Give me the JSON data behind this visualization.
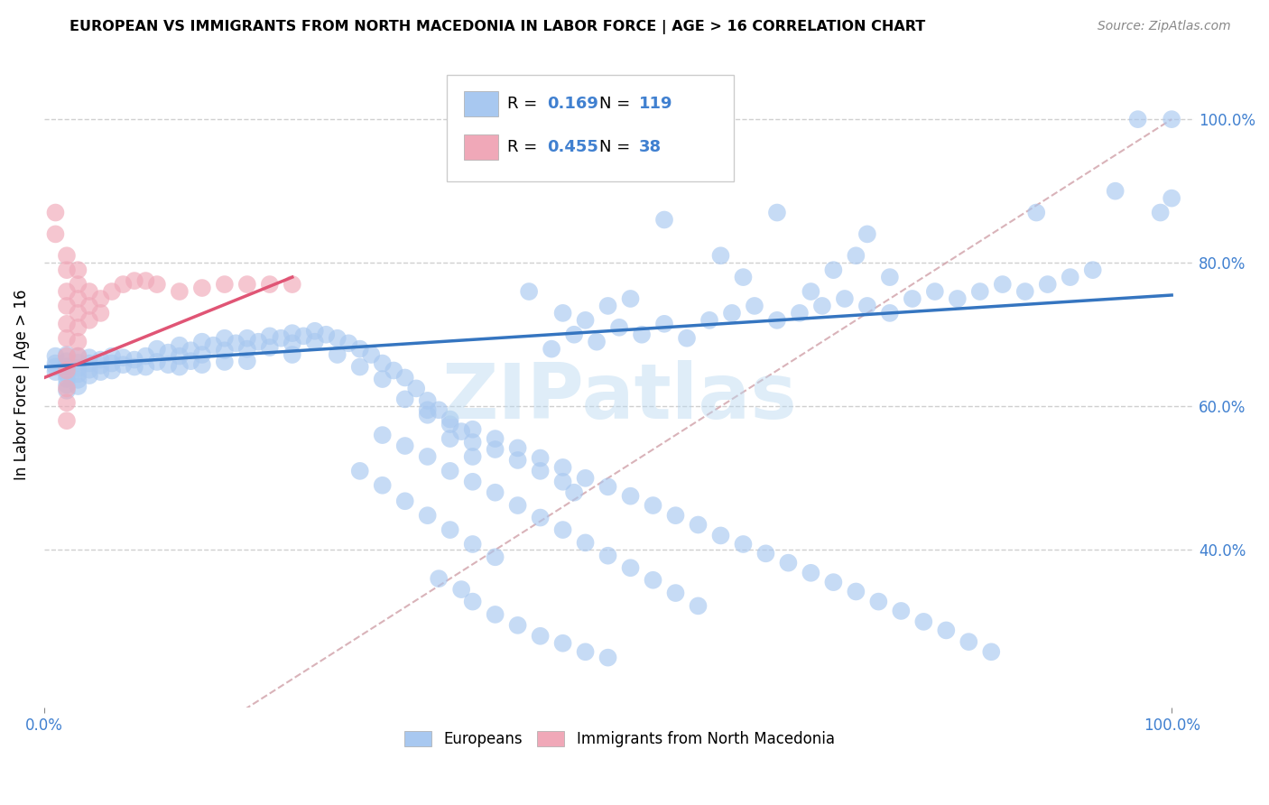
{
  "title": "EUROPEAN VS IMMIGRANTS FROM NORTH MACEDONIA IN LABOR FORCE | AGE > 16 CORRELATION CHART",
  "source": "Source: ZipAtlas.com",
  "ylabel": "In Labor Force | Age > 16",
  "y_ticks_labels": [
    "40.0%",
    "60.0%",
    "80.0%",
    "100.0%"
  ],
  "y_tick_vals": [
    0.4,
    0.6,
    0.8,
    1.0
  ],
  "x_tick_labels": [
    "0.0%",
    "100.0%"
  ],
  "x_tick_vals": [
    0.0,
    1.0
  ],
  "blue_color": "#a8c8f0",
  "pink_color": "#f0a8b8",
  "blue_line_color": "#3575c0",
  "pink_line_color": "#e05575",
  "diag_line_color": "#d0a0a8",
  "watermark": "ZIPatlas",
  "legend_blue_r": "0.169",
  "legend_blue_n": "119",
  "legend_pink_r": "0.455",
  "legend_pink_n": "38",
  "tick_color": "#4080d0",
  "blue_scatter": [
    [
      0.01,
      0.67
    ],
    [
      0.01,
      0.66
    ],
    [
      0.01,
      0.655
    ],
    [
      0.01,
      0.648
    ],
    [
      0.02,
      0.672
    ],
    [
      0.02,
      0.663
    ],
    [
      0.02,
      0.655
    ],
    [
      0.02,
      0.645
    ],
    [
      0.02,
      0.638
    ],
    [
      0.02,
      0.63
    ],
    [
      0.02,
      0.622
    ],
    [
      0.03,
      0.67
    ],
    [
      0.03,
      0.661
    ],
    [
      0.03,
      0.653
    ],
    [
      0.03,
      0.645
    ],
    [
      0.03,
      0.637
    ],
    [
      0.03,
      0.628
    ],
    [
      0.04,
      0.668
    ],
    [
      0.04,
      0.66
    ],
    [
      0.04,
      0.651
    ],
    [
      0.04,
      0.643
    ],
    [
      0.05,
      0.665
    ],
    [
      0.05,
      0.657
    ],
    [
      0.05,
      0.648
    ],
    [
      0.06,
      0.67
    ],
    [
      0.06,
      0.66
    ],
    [
      0.06,
      0.65
    ],
    [
      0.07,
      0.668
    ],
    [
      0.07,
      0.658
    ],
    [
      0.08,
      0.665
    ],
    [
      0.08,
      0.655
    ],
    [
      0.09,
      0.67
    ],
    [
      0.09,
      0.655
    ],
    [
      0.1,
      0.68
    ],
    [
      0.1,
      0.662
    ],
    [
      0.11,
      0.675
    ],
    [
      0.11,
      0.658
    ],
    [
      0.12,
      0.685
    ],
    [
      0.12,
      0.67
    ],
    [
      0.12,
      0.655
    ],
    [
      0.13,
      0.678
    ],
    [
      0.13,
      0.663
    ],
    [
      0.14,
      0.69
    ],
    [
      0.14,
      0.672
    ],
    [
      0.14,
      0.658
    ],
    [
      0.15,
      0.685
    ],
    [
      0.16,
      0.695
    ],
    [
      0.16,
      0.678
    ],
    [
      0.16,
      0.662
    ],
    [
      0.17,
      0.688
    ],
    [
      0.18,
      0.695
    ],
    [
      0.18,
      0.68
    ],
    [
      0.18,
      0.663
    ],
    [
      0.19,
      0.69
    ],
    [
      0.2,
      0.698
    ],
    [
      0.2,
      0.682
    ],
    [
      0.21,
      0.695
    ],
    [
      0.22,
      0.702
    ],
    [
      0.22,
      0.688
    ],
    [
      0.22,
      0.672
    ],
    [
      0.23,
      0.698
    ],
    [
      0.24,
      0.705
    ],
    [
      0.24,
      0.69
    ],
    [
      0.25,
      0.7
    ],
    [
      0.26,
      0.695
    ],
    [
      0.26,
      0.672
    ],
    [
      0.27,
      0.688
    ],
    [
      0.28,
      0.68
    ],
    [
      0.28,
      0.655
    ],
    [
      0.29,
      0.672
    ],
    [
      0.3,
      0.66
    ],
    [
      0.3,
      0.638
    ],
    [
      0.31,
      0.65
    ],
    [
      0.32,
      0.64
    ],
    [
      0.33,
      0.625
    ],
    [
      0.34,
      0.608
    ],
    [
      0.34,
      0.588
    ],
    [
      0.35,
      0.595
    ],
    [
      0.36,
      0.575
    ],
    [
      0.36,
      0.555
    ],
    [
      0.37,
      0.565
    ],
    [
      0.38,
      0.55
    ],
    [
      0.38,
      0.53
    ],
    [
      0.4,
      0.54
    ],
    [
      0.42,
      0.525
    ],
    [
      0.44,
      0.51
    ],
    [
      0.46,
      0.495
    ],
    [
      0.47,
      0.48
    ],
    [
      0.28,
      0.51
    ],
    [
      0.3,
      0.49
    ],
    [
      0.32,
      0.468
    ],
    [
      0.34,
      0.448
    ],
    [
      0.36,
      0.428
    ],
    [
      0.38,
      0.408
    ],
    [
      0.4,
      0.39
    ],
    [
      0.35,
      0.36
    ],
    [
      0.37,
      0.345
    ],
    [
      0.38,
      0.328
    ],
    [
      0.4,
      0.31
    ],
    [
      0.42,
      0.295
    ],
    [
      0.44,
      0.28
    ],
    [
      0.46,
      0.27
    ],
    [
      0.48,
      0.258
    ],
    [
      0.5,
      0.25
    ],
    [
      0.3,
      0.56
    ],
    [
      0.32,
      0.545
    ],
    [
      0.34,
      0.53
    ],
    [
      0.36,
      0.51
    ],
    [
      0.38,
      0.495
    ],
    [
      0.4,
      0.48
    ],
    [
      0.42,
      0.462
    ],
    [
      0.44,
      0.445
    ],
    [
      0.46,
      0.428
    ],
    [
      0.48,
      0.41
    ],
    [
      0.5,
      0.392
    ],
    [
      0.52,
      0.375
    ],
    [
      0.54,
      0.358
    ],
    [
      0.56,
      0.34
    ],
    [
      0.58,
      0.322
    ],
    [
      0.32,
      0.61
    ],
    [
      0.34,
      0.595
    ],
    [
      0.36,
      0.582
    ],
    [
      0.38,
      0.568
    ],
    [
      0.4,
      0.555
    ],
    [
      0.42,
      0.542
    ],
    [
      0.44,
      0.528
    ],
    [
      0.46,
      0.515
    ],
    [
      0.48,
      0.5
    ],
    [
      0.5,
      0.488
    ],
    [
      0.52,
      0.475
    ],
    [
      0.54,
      0.462
    ],
    [
      0.56,
      0.448
    ],
    [
      0.58,
      0.435
    ],
    [
      0.6,
      0.42
    ],
    [
      0.62,
      0.408
    ],
    [
      0.64,
      0.395
    ],
    [
      0.66,
      0.382
    ],
    [
      0.68,
      0.368
    ],
    [
      0.7,
      0.355
    ],
    [
      0.72,
      0.342
    ],
    [
      0.74,
      0.328
    ],
    [
      0.76,
      0.315
    ],
    [
      0.78,
      0.3
    ],
    [
      0.8,
      0.288
    ],
    [
      0.82,
      0.272
    ],
    [
      0.84,
      0.258
    ],
    [
      0.45,
      0.68
    ],
    [
      0.47,
      0.7
    ],
    [
      0.49,
      0.69
    ],
    [
      0.51,
      0.71
    ],
    [
      0.53,
      0.7
    ],
    [
      0.55,
      0.715
    ],
    [
      0.57,
      0.695
    ],
    [
      0.59,
      0.72
    ],
    [
      0.61,
      0.73
    ],
    [
      0.63,
      0.74
    ],
    [
      0.65,
      0.72
    ],
    [
      0.67,
      0.73
    ],
    [
      0.69,
      0.74
    ],
    [
      0.71,
      0.75
    ],
    [
      0.73,
      0.74
    ],
    [
      0.75,
      0.73
    ],
    [
      0.77,
      0.75
    ],
    [
      0.79,
      0.76
    ],
    [
      0.81,
      0.75
    ],
    [
      0.83,
      0.76
    ],
    [
      0.85,
      0.77
    ],
    [
      0.87,
      0.76
    ],
    [
      0.89,
      0.77
    ],
    [
      0.91,
      0.78
    ],
    [
      0.93,
      0.79
    ],
    [
      0.95,
      0.9
    ],
    [
      0.97,
      1.0
    ],
    [
      0.99,
      0.87
    ],
    [
      1.0,
      1.0
    ],
    [
      1.0,
      0.89
    ],
    [
      0.88,
      0.87
    ],
    [
      0.55,
      0.86
    ],
    [
      0.6,
      0.81
    ],
    [
      0.62,
      0.78
    ],
    [
      0.65,
      0.87
    ],
    [
      0.68,
      0.76
    ],
    [
      0.7,
      0.79
    ],
    [
      0.72,
      0.81
    ],
    [
      0.73,
      0.84
    ],
    [
      0.75,
      0.78
    ],
    [
      0.43,
      0.76
    ],
    [
      0.46,
      0.73
    ],
    [
      0.48,
      0.72
    ],
    [
      0.5,
      0.74
    ],
    [
      0.52,
      0.75
    ]
  ],
  "pink_scatter": [
    [
      0.01,
      0.87
    ],
    [
      0.01,
      0.84
    ],
    [
      0.02,
      0.81
    ],
    [
      0.02,
      0.79
    ],
    [
      0.02,
      0.76
    ],
    [
      0.02,
      0.74
    ],
    [
      0.02,
      0.715
    ],
    [
      0.02,
      0.695
    ],
    [
      0.02,
      0.67
    ],
    [
      0.02,
      0.65
    ],
    [
      0.02,
      0.625
    ],
    [
      0.02,
      0.605
    ],
    [
      0.02,
      0.58
    ],
    [
      0.03,
      0.79
    ],
    [
      0.03,
      0.77
    ],
    [
      0.03,
      0.75
    ],
    [
      0.03,
      0.73
    ],
    [
      0.03,
      0.71
    ],
    [
      0.03,
      0.69
    ],
    [
      0.03,
      0.67
    ],
    [
      0.04,
      0.76
    ],
    [
      0.04,
      0.74
    ],
    [
      0.04,
      0.72
    ],
    [
      0.05,
      0.75
    ],
    [
      0.05,
      0.73
    ],
    [
      0.06,
      0.76
    ],
    [
      0.07,
      0.77
    ],
    [
      0.08,
      0.775
    ],
    [
      0.09,
      0.775
    ],
    [
      0.1,
      0.77
    ],
    [
      0.12,
      0.76
    ],
    [
      0.14,
      0.765
    ],
    [
      0.16,
      0.77
    ],
    [
      0.18,
      0.77
    ],
    [
      0.2,
      0.77
    ],
    [
      0.22,
      0.77
    ]
  ],
  "blue_line": [
    [
      0.0,
      0.655
    ],
    [
      1.0,
      0.755
    ]
  ],
  "pink_line": [
    [
      0.0,
      0.64
    ],
    [
      0.22,
      0.78
    ]
  ],
  "diag_line": [
    [
      0.0,
      0.0
    ],
    [
      1.0,
      1.0
    ]
  ],
  "xlim": [
    0.0,
    1.02
  ],
  "ylim": [
    0.18,
    1.08
  ]
}
